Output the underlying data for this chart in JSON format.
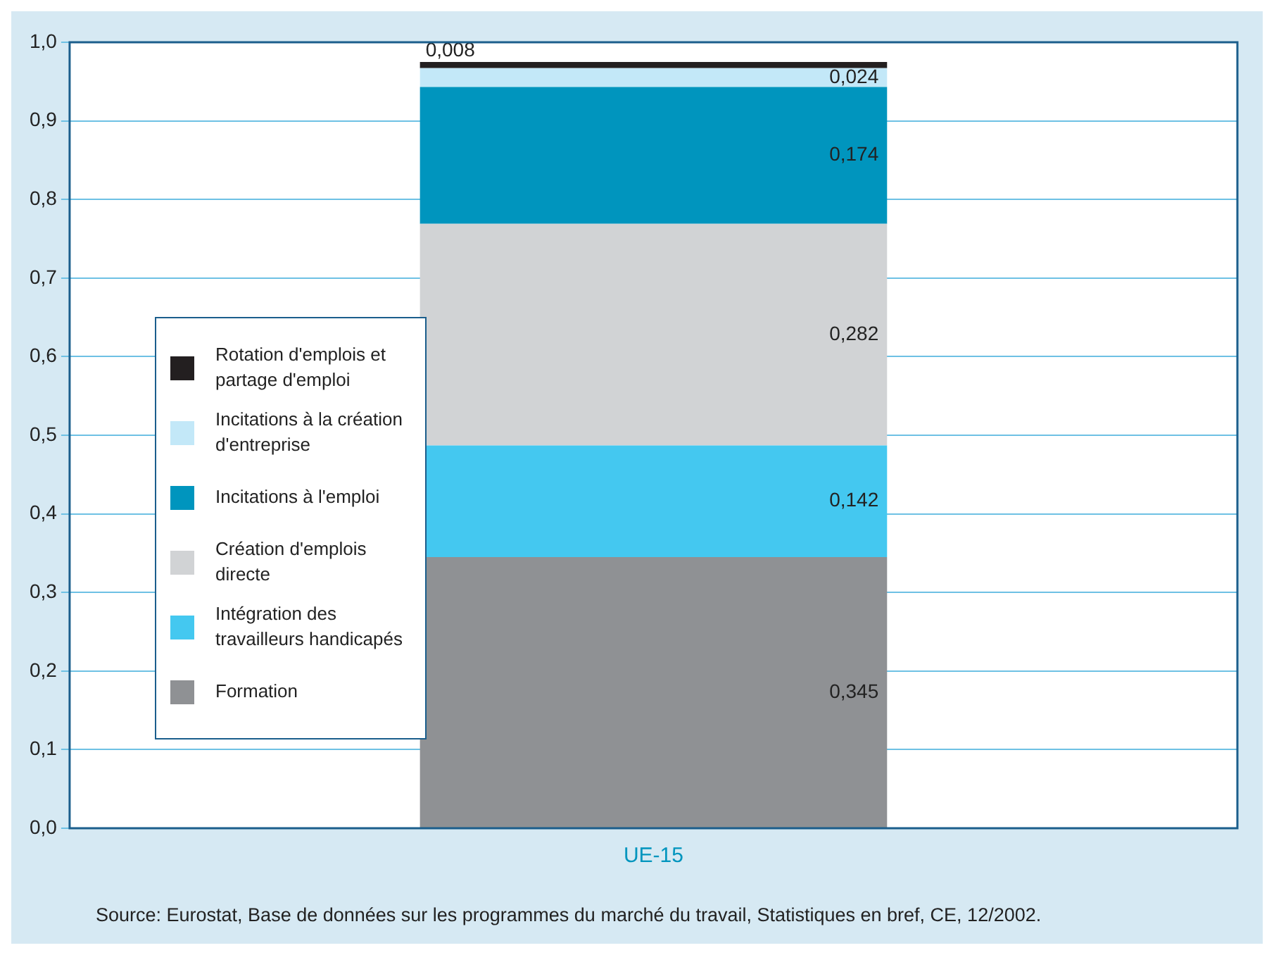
{
  "chart_data": {
    "type": "bar",
    "stacked": true,
    "categories": [
      "UE-15"
    ],
    "series": [
      {
        "name": "Formation",
        "color": "#8f9194",
        "values": [
          0.345
        ],
        "value_labels": [
          "0,345"
        ]
      },
      {
        "name": "Intégration des travailleurs handicapés",
        "color": "#44c8f0",
        "values": [
          0.142
        ],
        "value_labels": [
          "0,142"
        ]
      },
      {
        "name": "Création d'emplois directe",
        "color": "#d1d3d5",
        "values": [
          0.282
        ],
        "value_labels": [
          "0,282"
        ]
      },
      {
        "name": "Incitations à l'emploi",
        "color": "#0095be",
        "values": [
          0.174
        ],
        "value_labels": [
          "0,174"
        ]
      },
      {
        "name": "Incitations à la création d'entreprise",
        "color": "#c3e8f8",
        "values": [
          0.024
        ],
        "value_labels": [
          "0,024"
        ]
      },
      {
        "name": "Rotation d'emplois et partage d'emploi",
        "color": "#231f20",
        "values": [
          0.008
        ],
        "value_labels": [
          "0,008"
        ]
      }
    ],
    "ylim": [
      0,
      1
    ],
    "yticks": [
      {
        "value": 0,
        "label": "0,0"
      },
      {
        "value": 0.1,
        "label": "0,1"
      },
      {
        "value": 0.2,
        "label": "0,2"
      },
      {
        "value": 0.3,
        "label": "0,3"
      },
      {
        "value": 0.4,
        "label": "0,4"
      },
      {
        "value": 0.5,
        "label": "0,5"
      },
      {
        "value": 0.6,
        "label": "0,6"
      },
      {
        "value": 0.7,
        "label": "0,7"
      },
      {
        "value": 0.8,
        "label": "0,8"
      },
      {
        "value": 0.9,
        "label": "0,9"
      },
      {
        "value": 1,
        "label": "1,0"
      }
    ],
    "grid": "y",
    "legend": "left",
    "annotations": [
      "Source: Eurostat, Base de données sur les programmes du marché du travail,  Statistiques en bref, CE, 12/2002."
    ]
  }
}
